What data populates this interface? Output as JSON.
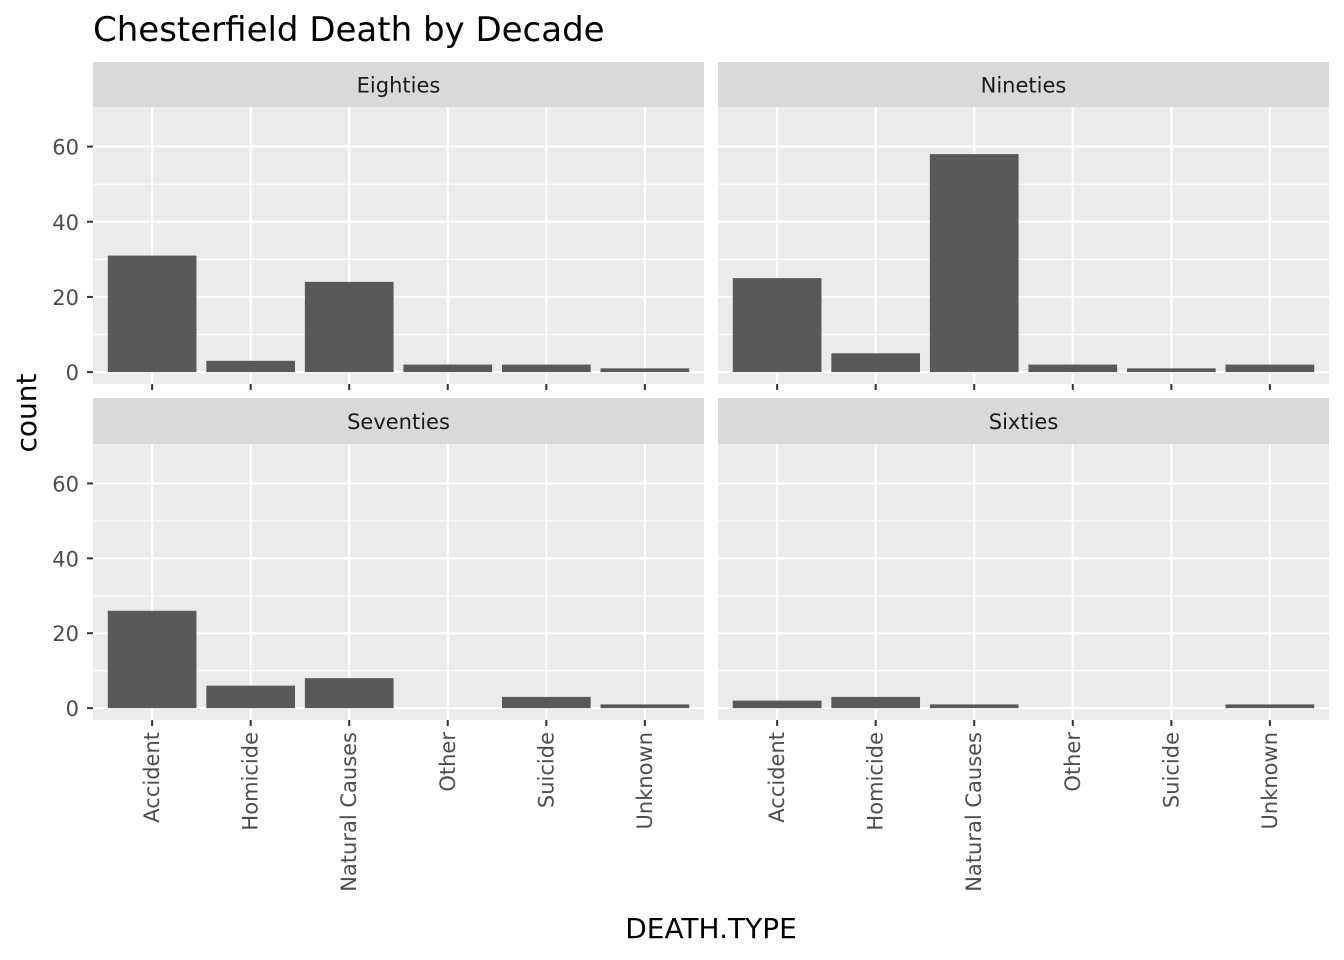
{
  "chart_data": {
    "type": "bar",
    "title": "Chesterfield Death by Decade",
    "xlabel": "DEATH.TYPE",
    "ylabel": "count",
    "categories": [
      "Accident",
      "Homicide",
      "Natural Causes",
      "Other",
      "Suicide",
      "Unknown"
    ],
    "ylim": [
      0,
      70
    ],
    "yticks": [
      "0",
      "20",
      "40",
      "60"
    ],
    "ytick_values": [
      0,
      20,
      40,
      60
    ],
    "grid": true,
    "legend": "none",
    "facets": [
      {
        "name": "Eighties",
        "values": [
          31,
          3,
          24,
          2,
          2,
          1
        ]
      },
      {
        "name": "Nineties",
        "values": [
          25,
          5,
          58,
          2,
          1,
          2
        ]
      },
      {
        "name": "Seventies",
        "values": [
          26,
          6,
          8,
          0,
          3,
          1
        ]
      },
      {
        "name": "Sixties",
        "values": [
          2,
          3,
          1,
          0,
          0,
          1
        ]
      }
    ],
    "colors": {
      "panel_bg": "#ebebeb",
      "strip_bg": "#d9d9d9",
      "bar": "#595959",
      "grid": "#ffffff",
      "tick": "#333333"
    }
  }
}
